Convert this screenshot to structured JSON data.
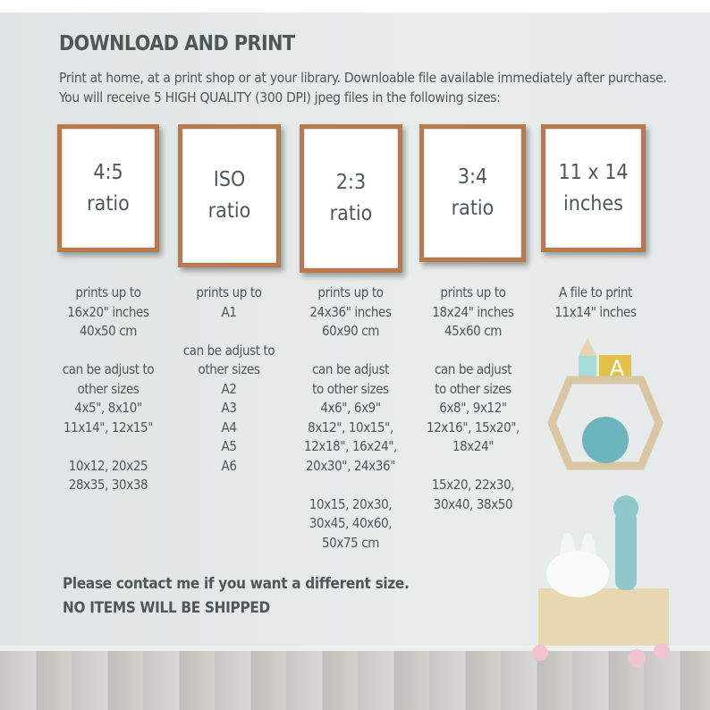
{
  "title": "DOWNLOAD AND PRINT",
  "intro": "Print at home, at a print shop or at your library.  Downloable file available immediately after purchase.  You will receive 5 HIGH QUALITY (300 DPI) jpeg files in the following sizes:",
  "frames": [
    {
      "line1": "4:5",
      "line2": "ratio"
    },
    {
      "line1": "ISO",
      "line2": "ratio"
    },
    {
      "line1": "2:3",
      "line2": "ratio"
    },
    {
      "line1": "3:4",
      "line2": "ratio"
    },
    {
      "line1": "11 x 14",
      "line2": "inches"
    }
  ],
  "columns": [
    "prints up to\n16x20\" inches\n40x50 cm\n\ncan be adjust to\nother sizes\n4x5\", 8x10\"\n11x14\", 12x15\"\n\n10x12, 20x25\n28x35, 30x38",
    "prints up to\nA1\n\ncan be adjust to\nother sizes\nA2\nA3\nA4\nA5\nA6",
    "prints up to\n24x36\" inches\n60x90 cm\n\ncan be adjust\nto other sizes\n4x6\", 6x9\"\n8x12\", 10x15\",\n12x18\", 16x24\",\n20x30\", 24x36\"\n\n10x15, 20x30,\n30x45, 40x60,\n50x75 cm",
    "prints up to\n18x24\" inches\n45x60 cm\n\ncan be adjust\nto other sizes\n6x8\", 9x12\"\n12x16\", 15x20\",\n18x24\"\n\n15x20, 22x30,\n30x40, 38x50",
    "A file to print\n11x14\" inches"
  ],
  "footer": {
    "line1": "Please contact me if you want a different size.",
    "line2": "NO ITEMS WILL BE SHIPPED"
  },
  "decor": {
    "block_letter": "A"
  }
}
